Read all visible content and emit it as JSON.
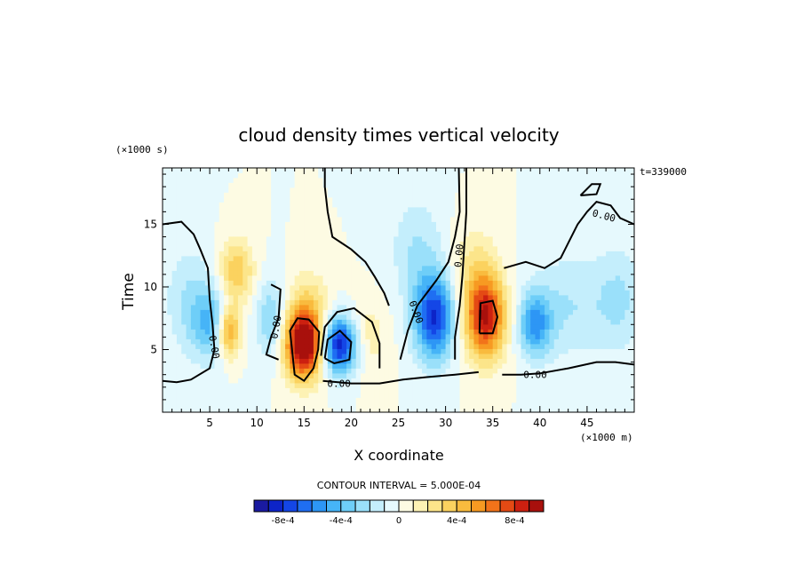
{
  "chart_data": {
    "type": "heatmap",
    "title": "cloud density times vertical velocity",
    "xlabel": "X coordinate",
    "ylabel": "Time",
    "x_units": "(×1000 m)",
    "y_units": "(×1000 s)",
    "time_stamp": "t=339000",
    "xlim": [
      0,
      50
    ],
    "ylim": [
      0,
      19.5
    ],
    "x_ticks": [
      5,
      10,
      15,
      20,
      25,
      30,
      35,
      40,
      45
    ],
    "x_tick_labels": [
      "5",
      "10",
      "15",
      "20",
      "25",
      "30",
      "35",
      "40",
      "45"
    ],
    "y_ticks": [
      5,
      10,
      15
    ],
    "y_tick_labels": [
      "5",
      "10",
      "15"
    ],
    "zero_contour_label": "0.00",
    "contour_interval_text": "CONTOUR INTERVAL = 5.000E-04",
    "colorbar": {
      "min": -0.001,
      "max": 0.001,
      "tick_values": [
        -0.0008,
        -0.0004,
        0,
        0.0004,
        0.0008
      ],
      "tick_labels": [
        "-8e-4",
        "-4e-4",
        "0",
        "4e-4",
        "8e-4"
      ],
      "colors": [
        "#1a1aa0",
        "#0d24c8",
        "#1446e6",
        "#1f6ef2",
        "#2d96f5",
        "#46b4f7",
        "#6ecef8",
        "#9ae0fa",
        "#c4eefc",
        "#e6f9fd",
        "#fdfbe3",
        "#fdf2b4",
        "#fce58a",
        "#fbd25f",
        "#f9bb3e",
        "#f79a22",
        "#f2731a",
        "#e44a14",
        "#cc2010",
        "#a8100c"
      ]
    },
    "features": [
      {
        "x": 7.0,
        "y": 6.5,
        "value": 0.0007,
        "sx": 0.9,
        "sy": 1.5
      },
      {
        "x": 7.8,
        "y": 11.2,
        "value": 0.0004,
        "sx": 1.3,
        "sy": 1.8
      },
      {
        "x": 5.5,
        "y": 7.0,
        "value": -0.0004,
        "sx": 1.6,
        "sy": 2.0
      },
      {
        "x": 3.0,
        "y": 9.0,
        "value": -0.0002,
        "sx": 2.0,
        "sy": 3.0
      },
      {
        "x": 15.0,
        "y": 5.5,
        "value": 0.0012,
        "sx": 1.4,
        "sy": 1.9
      },
      {
        "x": 15.5,
        "y": 9.0,
        "value": 0.0002,
        "sx": 1.5,
        "sy": 1.8
      },
      {
        "x": 11.5,
        "y": 7.5,
        "value": -0.0003,
        "sx": 1.1,
        "sy": 2.2
      },
      {
        "x": 18.8,
        "y": 5.4,
        "value": -0.0009,
        "sx": 1.4,
        "sy": 1.6
      },
      {
        "x": 21.5,
        "y": 6.0,
        "value": 0.0002,
        "sx": 1.5,
        "sy": 2.0
      },
      {
        "x": 28.8,
        "y": 7.6,
        "value": -0.0008,
        "sx": 1.5,
        "sy": 2.4
      },
      {
        "x": 27.0,
        "y": 13.0,
        "value": -0.0002,
        "sx": 2.0,
        "sy": 3.0
      },
      {
        "x": 34.2,
        "y": 7.6,
        "value": 0.0009,
        "sx": 1.5,
        "sy": 2.3
      },
      {
        "x": 33.0,
        "y": 11.5,
        "value": 0.0002,
        "sx": 1.8,
        "sy": 2.5
      },
      {
        "x": 39.5,
        "y": 7.0,
        "value": -0.0005,
        "sx": 1.2,
        "sy": 1.8
      },
      {
        "x": 43.0,
        "y": 8.5,
        "value": -0.0002,
        "sx": 3.0,
        "sy": 3.0
      },
      {
        "x": 48.5,
        "y": 9.0,
        "value": -0.0002,
        "sx": 1.8,
        "sy": 3.0
      }
    ],
    "zero_contours": [
      [
        [
          0,
          15
        ],
        [
          2,
          15.2
        ],
        [
          3.3,
          14.2
        ],
        [
          4,
          13
        ],
        [
          4.8,
          11.5
        ],
        [
          5,
          9
        ],
        [
          5.3,
          7
        ],
        [
          5.5,
          5
        ],
        [
          5,
          3.5
        ],
        [
          3,
          2.6
        ],
        [
          1.5,
          2.4
        ],
        [
          0,
          2.5
        ]
      ],
      [
        [
          11.5,
          10.2
        ],
        [
          12.5,
          9.8
        ],
        [
          12.3,
          7.5
        ],
        [
          11.5,
          6
        ],
        [
          11,
          4.6
        ],
        [
          12.3,
          4.2
        ]
      ],
      [
        [
          13.7,
          5.2
        ],
        [
          13.5,
          6.5
        ],
        [
          14.3,
          7.5
        ],
        [
          15.5,
          7.4
        ],
        [
          16.6,
          6.4
        ],
        [
          16.5,
          5
        ],
        [
          16,
          3.5
        ],
        [
          15,
          2.5
        ],
        [
          14,
          3
        ],
        [
          13.7,
          5.2
        ]
      ],
      [
        [
          16.8,
          4.5
        ],
        [
          17.2,
          6.8
        ],
        [
          18.5,
          8
        ],
        [
          20.3,
          8.3
        ],
        [
          22.2,
          7.2
        ],
        [
          23,
          5.5
        ],
        [
          23,
          3.5
        ]
      ],
      [
        [
          17,
          2.5
        ],
        [
          20,
          2.3
        ],
        [
          23,
          2.3
        ],
        [
          25.5,
          2.6
        ],
        [
          28,
          2.8
        ],
        [
          31,
          3
        ],
        [
          33.5,
          3.2
        ]
      ],
      [
        [
          17.2,
          4.3
        ],
        [
          17.5,
          5.8
        ],
        [
          18.8,
          6.5
        ],
        [
          20,
          5.6
        ],
        [
          19.8,
          4.2
        ],
        [
          18.2,
          3.9
        ],
        [
          17.2,
          4.3
        ]
      ],
      [
        [
          24,
          8.5
        ],
        [
          23.5,
          9.5
        ],
        [
          22.5,
          10.8
        ],
        [
          21.5,
          12
        ],
        [
          20,
          13
        ],
        [
          18,
          14
        ],
        [
          17.5,
          16
        ],
        [
          17.2,
          18
        ],
        [
          17.2,
          19.5
        ]
      ],
      [
        [
          25.2,
          4.2
        ],
        [
          26,
          6.5
        ],
        [
          27,
          8.5
        ],
        [
          29,
          10.5
        ],
        [
          30.3,
          12
        ],
        [
          31,
          14
        ],
        [
          31.5,
          16
        ],
        [
          31.4,
          19.5
        ]
      ],
      [
        [
          32.2,
          19.5
        ],
        [
          32.2,
          16
        ],
        [
          32,
          13.5
        ],
        [
          31.8,
          11
        ],
        [
          31.5,
          8.5
        ],
        [
          31,
          6
        ],
        [
          31,
          4.2
        ]
      ],
      [
        [
          33.6,
          6.3
        ],
        [
          33.7,
          8.7
        ],
        [
          35,
          8.9
        ],
        [
          35.5,
          7.6
        ],
        [
          35,
          6.3
        ],
        [
          33.6,
          6.3
        ]
      ],
      [
        [
          36,
          3
        ],
        [
          38,
          3
        ],
        [
          40,
          3.1
        ],
        [
          43,
          3.5
        ],
        [
          46,
          4
        ],
        [
          48,
          4
        ],
        [
          50,
          3.8
        ]
      ],
      [
        [
          36.2,
          11.5
        ],
        [
          38.5,
          12
        ],
        [
          40.5,
          11.5
        ],
        [
          42.2,
          12.3
        ],
        [
          43,
          13.5
        ],
        [
          44,
          15
        ],
        [
          45,
          16
        ],
        [
          46,
          16.8
        ],
        [
          47.5,
          16.5
        ],
        [
          48.5,
          15.5
        ],
        [
          50,
          15
        ]
      ],
      [
        [
          44.3,
          17.3
        ],
        [
          45.5,
          18.2
        ],
        [
          46.4,
          18.2
        ],
        [
          46,
          17.4
        ],
        [
          44.3,
          17.3
        ]
      ]
    ],
    "zero_contour_labels": [
      {
        "x": 18.7,
        "y": 2.3,
        "angle": 0
      },
      {
        "x": 26.9,
        "y": 8.0,
        "angle": 70
      },
      {
        "x": 31.4,
        "y": 12.5,
        "angle": -85
      },
      {
        "x": 39.5,
        "y": 3.0,
        "angle": 0
      },
      {
        "x": 46.8,
        "y": 15.7,
        "angle": 15
      },
      {
        "x": 12.0,
        "y": 6.8,
        "angle": -80
      },
      {
        "x": 5.5,
        "y": 5.2,
        "angle": 80
      }
    ],
    "grid": false
  }
}
